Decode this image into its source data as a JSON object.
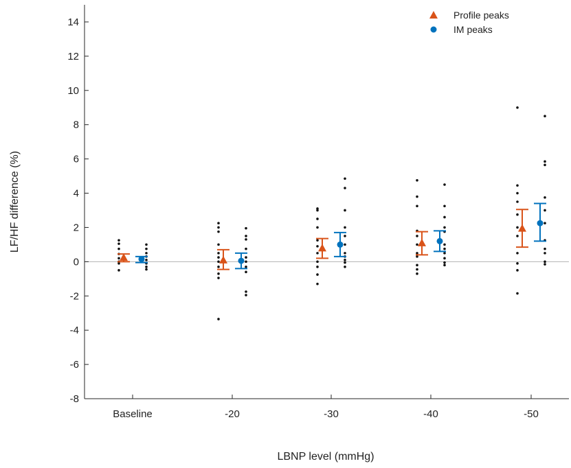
{
  "chart_data": {
    "type": "scatter",
    "xlabel": "LBNP level (mmHg)",
    "ylabel": "LF/HF difference (%)",
    "categories": [
      "Baseline",
      "-20",
      "-30",
      "-40",
      "-50"
    ],
    "yticks": [
      -8,
      -6,
      -4,
      -2,
      0,
      2,
      4,
      6,
      8,
      10,
      12,
      14
    ],
    "ylim": [
      -8,
      15
    ],
    "zero_line": true,
    "legend_position": "top-right",
    "series": [
      {
        "name": "Profile peaks",
        "marker": "triangle",
        "color": "#d95319",
        "mean": [
          0.25,
          0.1,
          0.8,
          1.1,
          1.95
        ],
        "ci_low": [
          0.0,
          -0.45,
          0.2,
          0.4,
          0.85
        ],
        "ci_high": [
          0.45,
          0.7,
          1.35,
          1.75,
          3.05
        ],
        "points": [
          [
            1.25,
            1.05,
            0.75,
            0.45,
            0.2,
            0.0,
            -0.1,
            -0.5
          ],
          [
            2.25,
            2.0,
            1.75,
            1.0,
            0.5,
            0.25,
            0.0,
            -0.3,
            -0.7,
            -0.95,
            -3.35
          ],
          [
            3.1,
            3.0,
            2.5,
            2.0,
            1.25,
            0.9,
            0.5,
            0.0,
            -0.3,
            -0.75,
            -1.3
          ],
          [
            4.75,
            3.8,
            3.25,
            1.8,
            1.5,
            1.0,
            0.5,
            0.3,
            -0.2,
            -0.45,
            -0.7
          ],
          [
            9.0,
            4.45,
            4.0,
            3.5,
            2.75,
            2.0,
            1.5,
            0.5,
            -0.1,
            -0.5,
            -1.85
          ]
        ]
      },
      {
        "name": "IM peaks",
        "marker": "circle",
        "color": "#0072bd",
        "mean": [
          0.15,
          0.05,
          1.0,
          1.2,
          2.25
        ],
        "ci_low": [
          -0.05,
          -0.4,
          0.3,
          0.6,
          1.2
        ],
        "ci_high": [
          0.3,
          0.5,
          1.7,
          1.8,
          3.4
        ],
        "points": [
          [
            1.0,
            0.75,
            0.5,
            0.3,
            0.1,
            -0.1,
            -0.3,
            -0.45
          ],
          [
            1.95,
            1.5,
            1.3,
            0.75,
            0.25,
            0.0,
            -0.3,
            -0.6,
            -1.75,
            -1.95
          ],
          [
            4.85,
            4.3,
            3.0,
            2.0,
            1.5,
            1.0,
            0.5,
            0.3,
            0.1,
            -0.05,
            -0.3
          ],
          [
            4.5,
            3.25,
            2.6,
            2.0,
            1.75,
            1.0,
            0.75,
            0.5,
            0.2,
            -0.05,
            -0.2
          ],
          [
            8.5,
            5.85,
            5.65,
            3.75,
            3.0,
            2.25,
            1.25,
            0.75,
            0.5,
            0.0,
            -0.15
          ]
        ]
      }
    ]
  }
}
